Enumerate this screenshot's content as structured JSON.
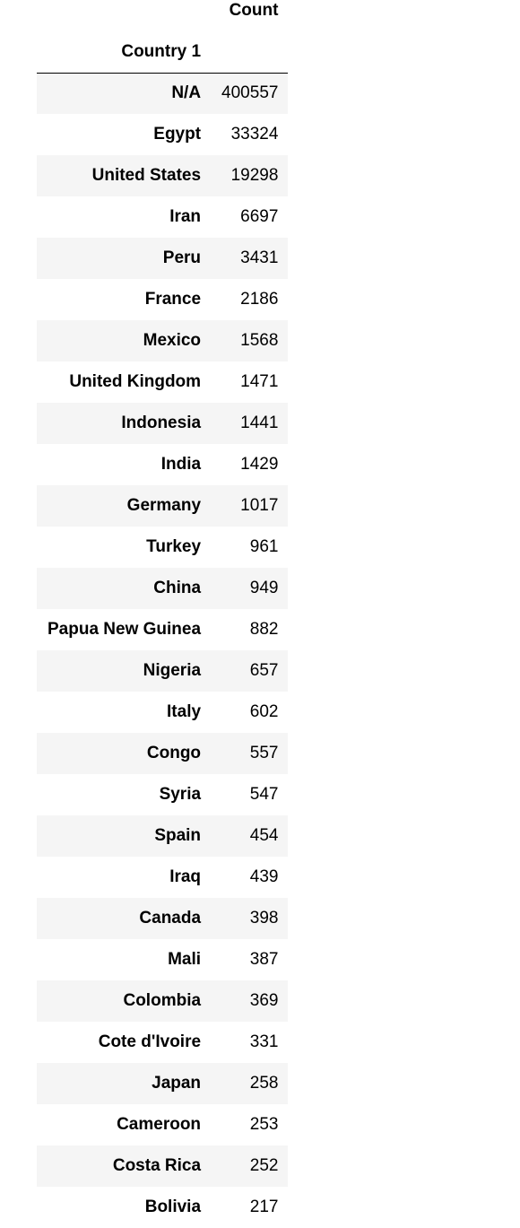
{
  "table": {
    "value_header": "Count",
    "index_name": "Country 1",
    "rows": [
      {
        "country": "N/A",
        "count": "400557"
      },
      {
        "country": "Egypt",
        "count": "33324"
      },
      {
        "country": "United States",
        "count": "19298"
      },
      {
        "country": "Iran",
        "count": "6697"
      },
      {
        "country": "Peru",
        "count": "3431"
      },
      {
        "country": "France",
        "count": "2186"
      },
      {
        "country": "Mexico",
        "count": "1568"
      },
      {
        "country": "United Kingdom",
        "count": "1471"
      },
      {
        "country": "Indonesia",
        "count": "1441"
      },
      {
        "country": "India",
        "count": "1429"
      },
      {
        "country": "Germany",
        "count": "1017"
      },
      {
        "country": "Turkey",
        "count": "961"
      },
      {
        "country": "China",
        "count": "949"
      },
      {
        "country": "Papua New Guinea",
        "count": "882"
      },
      {
        "country": "Nigeria",
        "count": "657"
      },
      {
        "country": "Italy",
        "count": "602"
      },
      {
        "country": "Congo",
        "count": "557"
      },
      {
        "country": "Syria",
        "count": "547"
      },
      {
        "country": "Spain",
        "count": "454"
      },
      {
        "country": "Iraq",
        "count": "439"
      },
      {
        "country": "Canada",
        "count": "398"
      },
      {
        "country": "Mali",
        "count": "387"
      },
      {
        "country": "Colombia",
        "count": "369"
      },
      {
        "country": "Cote d'Ivoire",
        "count": "331"
      },
      {
        "country": "Japan",
        "count": "258"
      },
      {
        "country": "Cameroon",
        "count": "253"
      },
      {
        "country": "Costa Rica",
        "count": "252"
      },
      {
        "country": "Bolivia",
        "count": "217"
      }
    ]
  }
}
